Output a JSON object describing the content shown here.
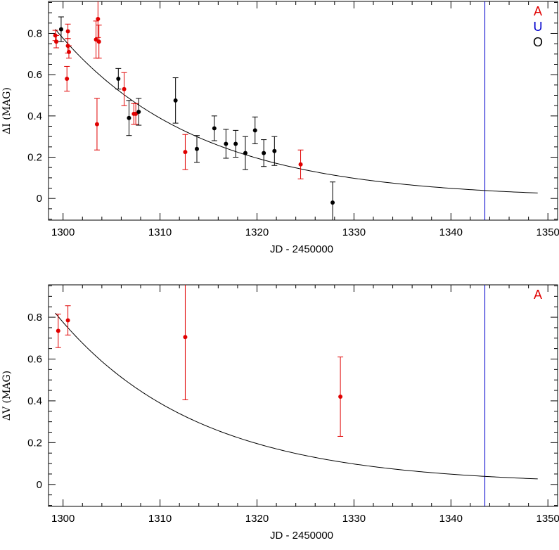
{
  "chart_data": [
    {
      "type": "scatter",
      "xlabel": "JD - 2450000",
      "ylabel": "ΔI (MAG)",
      "xlim": [
        1298.5,
        1351
      ],
      "ylim": [
        -0.105,
        0.955
      ],
      "xticks": [
        1300,
        1310,
        1320,
        1330,
        1340,
        1350
      ],
      "yticks": [
        0,
        0.2,
        0.4,
        0.6,
        0.8
      ],
      "ytick_labels": [
        "0",
        "0.2",
        "0.4",
        "0.6",
        "0.8"
      ],
      "legend": [
        {
          "label": "A",
          "color": "#e00000"
        },
        {
          "label": "U",
          "color": "#0000cc"
        },
        {
          "label": "O",
          "color": "#000000"
        }
      ],
      "legend_position": "top-right",
      "vline": {
        "x": 1343.5,
        "color": "#0000cc"
      },
      "model_curve": {
        "form": "exponential_decay",
        "a": 0.82,
        "tau": 14.5,
        "x0": 1299.2,
        "x_end": 1349,
        "color": "#000000"
      },
      "series": [
        {
          "key": "A",
          "color": "#e00000",
          "points": [
            {
              "x": 1299.2,
              "y": 0.79,
              "err": 0.025
            },
            {
              "x": 1299.3,
              "y": 0.76,
              "err": 0.03
            },
            {
              "x": 1300.5,
              "y": 0.81,
              "err": 0.035
            },
            {
              "x": 1300.5,
              "y": 0.74,
              "err": 0.035
            },
            {
              "x": 1300.6,
              "y": 0.71,
              "err": 0.03
            },
            {
              "x": 1300.4,
              "y": 0.58,
              "err": 0.06
            },
            {
              "x": 1303.4,
              "y": 0.77,
              "err": 0.09
            },
            {
              "x": 1303.6,
              "y": 0.87,
              "err": 0.09
            },
            {
              "x": 1303.7,
              "y": 0.76,
              "err": 0.08
            },
            {
              "x": 1303.5,
              "y": 0.36,
              "err": 0.125
            },
            {
              "x": 1306.3,
              "y": 0.53,
              "err": 0.08
            },
            {
              "x": 1307.3,
              "y": 0.41,
              "err": 0.05
            },
            {
              "x": 1307.5,
              "y": 0.41,
              "err": 0.05
            },
            {
              "x": 1312.6,
              "y": 0.225,
              "err": 0.085
            },
            {
              "x": 1324.5,
              "y": 0.165,
              "err": 0.07
            }
          ]
        },
        {
          "key": "O",
          "color": "#000000",
          "points": [
            {
              "x": 1299.8,
              "y": 0.82,
              "err": 0.06
            },
            {
              "x": 1305.7,
              "y": 0.58,
              "err": 0.05
            },
            {
              "x": 1306.8,
              "y": 0.39,
              "err": 0.085
            },
            {
              "x": 1307.8,
              "y": 0.42,
              "err": 0.065
            },
            {
              "x": 1311.6,
              "y": 0.475,
              "err": 0.11
            },
            {
              "x": 1313.8,
              "y": 0.24,
              "err": 0.065
            },
            {
              "x": 1315.6,
              "y": 0.34,
              "err": 0.06
            },
            {
              "x": 1316.8,
              "y": 0.265,
              "err": 0.07
            },
            {
              "x": 1317.8,
              "y": 0.265,
              "err": 0.065
            },
            {
              "x": 1318.8,
              "y": 0.22,
              "err": 0.08
            },
            {
              "x": 1319.8,
              "y": 0.33,
              "err": 0.065
            },
            {
              "x": 1320.7,
              "y": 0.22,
              "err": 0.065
            },
            {
              "x": 1321.8,
              "y": 0.23,
              "err": 0.07
            },
            {
              "x": 1327.8,
              "y": -0.02,
              "err": 0.1
            }
          ]
        }
      ]
    },
    {
      "type": "scatter",
      "xlabel": "JD - 2450000",
      "ylabel": "ΔV (MAG)",
      "xlim": [
        1298.5,
        1351
      ],
      "ylim": [
        -0.105,
        0.955
      ],
      "xticks": [
        1300,
        1310,
        1320,
        1330,
        1340,
        1350
      ],
      "yticks": [
        0,
        0.2,
        0.4,
        0.6,
        0.8
      ],
      "ytick_labels": [
        "0",
        "0.2",
        "0.4",
        "0.6",
        "0.8"
      ],
      "legend": [
        {
          "label": "A",
          "color": "#e00000"
        }
      ],
      "legend_position": "top-right",
      "vline": {
        "x": 1343.5,
        "color": "#0000cc"
      },
      "model_curve": {
        "form": "exponential_decay",
        "a": 0.82,
        "tau": 14.5,
        "x0": 1299.2,
        "x_end": 1349,
        "color": "#000000"
      },
      "series": [
        {
          "key": "A",
          "color": "#e00000",
          "points": [
            {
              "x": 1299.5,
              "y": 0.735,
              "err": 0.08
            },
            {
              "x": 1300.5,
              "y": 0.785,
              "err": 0.07
            },
            {
              "x": 1312.6,
              "y": 0.705,
              "err": 0.3
            },
            {
              "x": 1328.6,
              "y": 0.42,
              "err": 0.19
            }
          ]
        }
      ]
    }
  ]
}
